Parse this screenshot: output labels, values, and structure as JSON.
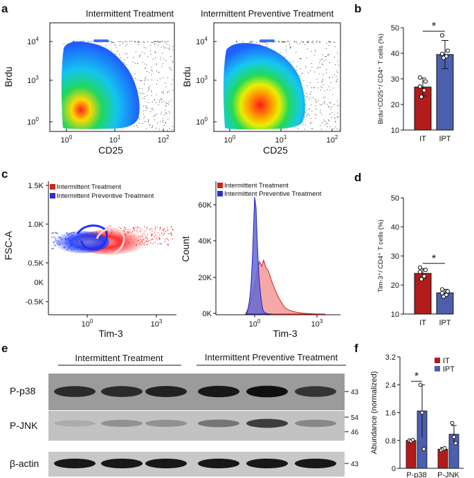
{
  "panel_letters": [
    "a",
    "b",
    "c",
    "d",
    "e",
    "f"
  ],
  "colors": {
    "it": "#b31b1b",
    "ipt": "#4a5fb0",
    "flow_blue": "#1f5fff",
    "flow_red": "#ff2a2a",
    "hist_red": "#f4a3a3",
    "hist_blue": "#6b6fd6"
  },
  "panel_a": {
    "left_title": "Intermittent  Treatment",
    "right_title": "Intermittent Preventive Treatment",
    "y_label": "Brdu",
    "x_label": "CD25",
    "y_ticks": [
      {
        "base": "10",
        "exp": "4"
      },
      {
        "base": "10",
        "exp": "3"
      },
      {
        "base": "10",
        "exp": "0"
      }
    ],
    "x_ticks": [
      {
        "base": "10",
        "exp": "0"
      },
      {
        "base": "10",
        "exp": "1"
      },
      {
        "base": "10",
        "exp": "2"
      }
    ]
  },
  "panel_b": {
    "y_label": "Brdu⁺CD25⁺/ CD4⁺ T  cells (%)",
    "sig": "*",
    "chart_data": {
      "type": "bar",
      "categories": [
        "IT",
        "IPT"
      ],
      "values": [
        26.8,
        39.5
      ],
      "errors": [
        3.5,
        5.5
      ],
      "points": [
        [
          30.5,
          29,
          27,
          25.5,
          23
        ],
        [
          47,
          41,
          39.8,
          38.8,
          38.2
        ]
      ],
      "ylim": [
        10,
        50
      ],
      "yticks": [
        "10",
        "20",
        "30",
        "40",
        "50"
      ],
      "ylabel": "Brdu⁺CD25⁺/ CD4⁺ T  cells (%)"
    }
  },
  "panel_c": {
    "legend": [
      "Intermittent  Treatment",
      "Intermittent Preventive Treatment"
    ],
    "scatter_y_label": "FSC-A",
    "scatter_y_ticks": [
      "1.5K",
      "1.0K",
      "0.5K",
      "0K",
      "-0.5K"
    ],
    "hist_y_label": "Count",
    "hist_y_ticks": [
      "60K",
      "40K",
      "20K",
      "0K"
    ],
    "x_label": "Tim-3",
    "x_ticks": [
      {
        "base": "10",
        "exp": "0"
      },
      {
        "base": "10",
        "exp": "3"
      }
    ]
  },
  "panel_d": {
    "y_label": "Tim-3⁺/ CD4⁺ T  cells (%)",
    "sig": "*",
    "chart_data": {
      "type": "bar",
      "categories": [
        "IT",
        "IPT"
      ],
      "values": [
        24,
        17.3
      ],
      "errors": [
        1.6,
        1.2
      ],
      "points": [
        [
          26,
          25.2,
          24.5,
          23,
          22
        ],
        [
          18.5,
          17.8,
          17.2,
          16.6,
          16
        ]
      ],
      "ylim": [
        10,
        50
      ],
      "yticks": [
        "10",
        "20",
        "30",
        "40",
        "50"
      ],
      "ylabel": "Tim-3⁺/ CD4⁺ T  cells (%)"
    }
  },
  "panel_e": {
    "group_left": "Intermittent  Treatment",
    "group_right": "Intermittent Preventive Treatment",
    "rows": [
      {
        "label": "P-p38",
        "markers": [
          "43"
        ]
      },
      {
        "label": "P-JNK",
        "markers": [
          "54",
          "46"
        ]
      },
      {
        "label": "β-actin",
        "markers": [
          "43"
        ]
      }
    ],
    "band_intensity": {
      "p38": [
        0.85,
        0.85,
        0.9,
        0.95,
        1.0,
        0.8
      ],
      "jnk": [
        0.15,
        0.3,
        0.3,
        0.45,
        0.75,
        0.35
      ],
      "actin": [
        0.95,
        0.95,
        0.95,
        0.95,
        0.95,
        0.95
      ]
    }
  },
  "panel_f": {
    "y_label": "Abundance (normalized)",
    "sig": "*",
    "legend": [
      "IT",
      "IPT"
    ],
    "chart_data": {
      "type": "bar",
      "categories": [
        "P-p38",
        "P-JNK"
      ],
      "series": [
        {
          "name": "IT",
          "values": [
            0.8,
            0.55
          ],
          "errors": [
            0.03,
            0.05
          ],
          "points": [
            [
              0.8,
              0.78,
              0.82
            ],
            [
              0.52,
              0.55,
              0.58
            ]
          ]
        },
        {
          "name": "IPT",
          "values": [
            1.65,
            0.98
          ],
          "errors": [
            0.75,
            0.25
          ],
          "points": [
            [
              2.4,
              1.6,
              0.55
            ],
            [
              1.3,
              0.9,
              0.72
            ]
          ]
        }
      ],
      "ylim": [
        0,
        3.2
      ],
      "yticks": [
        "0",
        "0.8",
        "1.6",
        "2.4",
        "3.2"
      ],
      "ylabel": "Abundance (normalized)"
    }
  }
}
